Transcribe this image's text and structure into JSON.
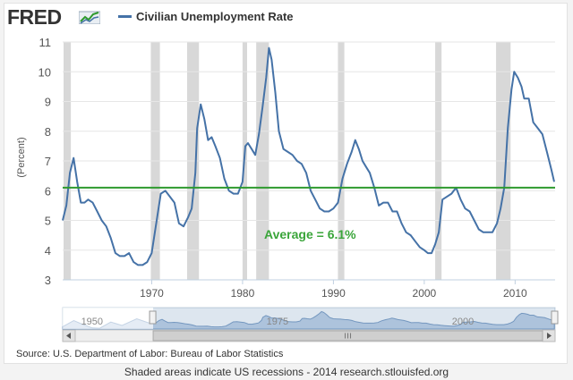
{
  "header": {
    "logo_text": "FRED",
    "logo_icon": "line-chart-icon",
    "legend_label": "Civilian Unemployment Rate"
  },
  "colors": {
    "series": "#4572a7",
    "average": "#2e9a2e",
    "recession": "#d8d8d8",
    "annotation": "#3aa53a"
  },
  "chart_data": {
    "type": "line",
    "title": "",
    "ylabel": "(Percent)",
    "xlabel": "",
    "x_unit": "year",
    "xlim": [
      1960.2,
      2014.4
    ],
    "ylim": [
      3,
      11
    ],
    "xticks": [
      1970,
      1980,
      1990,
      2000,
      2010
    ],
    "xtick_labels": [
      "1970",
      "1980",
      "1990",
      "2000",
      "2010"
    ],
    "yticks": [
      3,
      4,
      5,
      6,
      7,
      8,
      9,
      10,
      11
    ],
    "ytick_labels": [
      "3",
      "4",
      "5",
      "6",
      "7",
      "8",
      "9",
      "10",
      "11"
    ],
    "grid": "horizontal",
    "series": [
      {
        "name": "Civilian Unemployment Rate",
        "x": [
          1960.2,
          1960.6,
          1961.0,
          1961.4,
          1961.8,
          1962.2,
          1962.6,
          1963.0,
          1963.5,
          1964.0,
          1964.5,
          1965.0,
          1965.5,
          1966.0,
          1966.5,
          1967.0,
          1967.5,
          1968.0,
          1968.5,
          1969.0,
          1969.5,
          1970.0,
          1970.5,
          1971.0,
          1971.5,
          1972.0,
          1972.5,
          1973.0,
          1973.5,
          1974.0,
          1974.4,
          1974.8,
          1975.0,
          1975.4,
          1975.8,
          1976.2,
          1976.6,
          1977.0,
          1977.5,
          1978.0,
          1978.5,
          1979.0,
          1979.5,
          1980.0,
          1980.3,
          1980.6,
          1981.0,
          1981.4,
          1981.8,
          1982.2,
          1982.6,
          1982.9,
          1983.2,
          1983.6,
          1984.0,
          1984.5,
          1985.0,
          1985.5,
          1986.0,
          1986.5,
          1987.0,
          1987.5,
          1988.0,
          1988.5,
          1989.0,
          1989.5,
          1990.0,
          1990.5,
          1991.0,
          1991.5,
          1992.0,
          1992.4,
          1992.8,
          1993.2,
          1993.6,
          1994.0,
          1994.5,
          1995.0,
          1995.5,
          1996.0,
          1996.5,
          1997.0,
          1997.5,
          1998.0,
          1998.5,
          1999.0,
          1999.5,
          2000.0,
          2000.4,
          2000.8,
          2001.2,
          2001.6,
          2002.0,
          2002.5,
          2003.0,
          2003.5,
          2004.0,
          2004.5,
          2005.0,
          2005.5,
          2006.0,
          2006.5,
          2007.0,
          2007.5,
          2008.0,
          2008.4,
          2008.8,
          2009.2,
          2009.6,
          2009.9,
          2010.3,
          2010.7,
          2011.0,
          2011.5,
          2012.0,
          2012.5,
          2013.0,
          2013.5,
          2014.0,
          2014.3
        ],
        "y": [
          5.0,
          5.5,
          6.6,
          7.1,
          6.3,
          5.6,
          5.6,
          5.7,
          5.6,
          5.3,
          5.0,
          4.8,
          4.4,
          3.9,
          3.8,
          3.8,
          3.9,
          3.6,
          3.5,
          3.5,
          3.6,
          3.9,
          4.9,
          5.9,
          6.0,
          5.8,
          5.6,
          4.9,
          4.8,
          5.1,
          5.4,
          6.6,
          8.1,
          8.9,
          8.4,
          7.7,
          7.8,
          7.5,
          7.1,
          6.4,
          6.0,
          5.9,
          5.9,
          6.3,
          7.5,
          7.6,
          7.4,
          7.2,
          7.9,
          8.8,
          9.8,
          10.8,
          10.4,
          9.3,
          8.0,
          7.4,
          7.3,
          7.2,
          7.0,
          6.9,
          6.6,
          6.0,
          5.7,
          5.4,
          5.3,
          5.3,
          5.4,
          5.6,
          6.4,
          6.9,
          7.3,
          7.7,
          7.4,
          7.0,
          6.8,
          6.6,
          6.1,
          5.5,
          5.6,
          5.6,
          5.3,
          5.3,
          4.9,
          4.6,
          4.5,
          4.3,
          4.1,
          4.0,
          3.9,
          3.9,
          4.2,
          4.6,
          5.7,
          5.8,
          5.9,
          6.1,
          5.7,
          5.4,
          5.3,
          5.0,
          4.7,
          4.6,
          4.6,
          4.6,
          4.9,
          5.4,
          6.1,
          8.1,
          9.4,
          10.0,
          9.8,
          9.5,
          9.1,
          9.1,
          8.3,
          8.1,
          7.9,
          7.3,
          6.7,
          6.3
        ]
      }
    ],
    "average": {
      "value": 6.1,
      "label": "Average = 6.1%"
    },
    "recessions": [
      [
        1960.3,
        1961.1
      ],
      [
        1969.9,
        1970.9
      ],
      [
        1973.9,
        1975.2
      ],
      [
        1980.0,
        1980.5
      ],
      [
        1981.5,
        1982.9
      ],
      [
        1990.5,
        1991.2
      ],
      [
        2001.2,
        2001.9
      ],
      [
        2007.9,
        2009.5
      ]
    ],
    "navigator": {
      "tick_labels": [
        "1950",
        "1975",
        "2000"
      ],
      "tick_years": [
        1950,
        1975,
        2000
      ],
      "range": [
        1948,
        2014.4
      ],
      "selected": [
        1960.2,
        2014.4
      ],
      "scroll_icon": "scroll-grip-icon"
    },
    "source": "Source: U.S. Department of Labor: Bureau of Labor Statistics",
    "note": "Shaded areas indicate US recessions - 2014 research.stlouisfed.org"
  }
}
